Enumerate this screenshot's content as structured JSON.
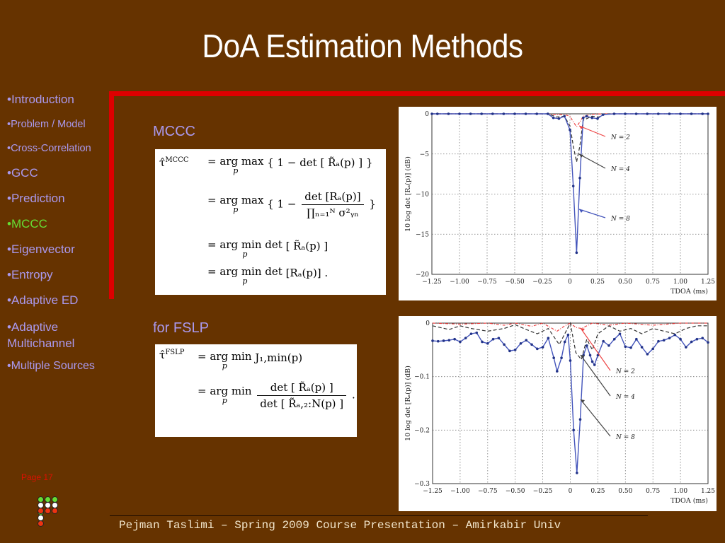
{
  "slide": {
    "title": "DoA Estimation Methods",
    "page_label": "Page 17",
    "footer": "Pejman Taslimi – Spring 2009 Course Presentation – Amirkabir Univ",
    "colors": {
      "background": "#663300",
      "accent_frame": "#dd0000",
      "nav_text": "#aa99ee",
      "nav_active": "#66dd33",
      "page_label": "#dd1100"
    }
  },
  "sidebar": {
    "items": [
      {
        "label": "•Introduction",
        "active": false
      },
      {
        "label": "•Problem / Model",
        "active": false
      },
      {
        "label": "•Cross-Correlation",
        "active": false
      },
      {
        "label": "•GCC",
        "active": false
      },
      {
        "label": "•Prediction",
        "active": false
      },
      {
        "label": "•MCCC",
        "active": true
      },
      {
        "label": "•Eigenvector",
        "active": false
      },
      {
        "label": "•Entropy",
        "active": false
      },
      {
        "label": "•Adaptive ED",
        "active": false
      },
      {
        "label": "•Adaptive Multichannel",
        "active": false
      },
      {
        "label": "•Multiple Sources",
        "active": false
      }
    ]
  },
  "nav_dots": {
    "rows": [
      [
        "#66dd33",
        "#66dd33",
        "#66dd33",
        "#66dd33"
      ],
      [
        "#ffffff",
        "#ffffff",
        "#ffffff",
        "#ffffff"
      ],
      [
        "#ee3311",
        "#ee3311",
        "#ee3311",
        "#ee3311"
      ]
    ]
  },
  "main": {
    "mccc_label": "MCCC",
    "fslp_label": "for FSLP",
    "mccc_formula": {
      "lhs": "τ̂",
      "lhs_sup": "MCCC",
      "lines": [
        {
          "op": "= arg max",
          "under": "p",
          "body": "{ 1 − det [ R̃ₐ(p) ] }"
        },
        {
          "op": "= arg max",
          "under": "p",
          "pre": "{ 1 −",
          "num": "det [Rₐ(p)]",
          "den": "∏ₙ₌₁ᴺ σ²ᵧₙ",
          "post": "}"
        },
        {
          "op": "= arg min det",
          "under": "p",
          "body": "[ R̃ₐ(p) ]"
        },
        {
          "op": "= arg min det",
          "under": "p",
          "body": "[Rₐ(p)] ."
        }
      ]
    },
    "fslp_formula": {
      "lhs": "τ̂",
      "lhs_sup": "FSLP",
      "lines": [
        {
          "op": "= arg min",
          "under": "p",
          "body": "J₁,min(p)"
        },
        {
          "op": "= arg min",
          "under": "p",
          "num": "det [ R̃ₐ(p) ]",
          "den": "det [ R̃ₐ,₂:N(p) ]",
          "post": "."
        }
      ]
    }
  },
  "chart_data": [
    {
      "type": "line",
      "title": "",
      "xlabel": "TDOA (ms)",
      "ylabel": "10 log det [Rₐ(p)]  (dB)",
      "xlim": [
        -1.25,
        1.25
      ],
      "ylim": [
        -20,
        0
      ],
      "xticks": [
        -1.25,
        -1.0,
        -0.75,
        -0.5,
        -0.25,
        0,
        0.25,
        0.5,
        0.75,
        1.0,
        1.25
      ],
      "xtick_labels": [
        "−1.25",
        "−1.00",
        "−0.75",
        "−0.50",
        "−0.25",
        "0",
        "0.25",
        "0.50",
        "0.75",
        "1.00",
        "1.25"
      ],
      "yticks": [
        0,
        -5,
        -10,
        -15,
        -20
      ],
      "ytick_labels": [
        "0",
        "−5",
        "−10",
        "−15",
        "−20"
      ],
      "grid": true,
      "annotations": [
        "N = 2",
        "N = 4",
        "N = 8"
      ],
      "series": [
        {
          "name": "N = 2",
          "color": "#ee4444",
          "style": "dash-dot",
          "x": [
            -1.25,
            -0.25,
            -0.15,
            -0.05,
            0,
            0.03,
            0.06,
            0.09,
            0.12,
            0.2,
            0.3,
            1.25
          ],
          "y": [
            0,
            0,
            -0.05,
            -0.1,
            -0.3,
            -1.0,
            -1.6,
            -1.0,
            -0.3,
            -0.05,
            0,
            0
          ]
        },
        {
          "name": "N = 4",
          "color": "#333333",
          "style": "dashed",
          "x": [
            -1.25,
            -0.2,
            -0.12,
            -0.05,
            0,
            0.03,
            0.06,
            0.09,
            0.12,
            0.2,
            0.26,
            0.32,
            1.25
          ],
          "y": [
            0,
            0,
            -0.4,
            -0.3,
            -1.5,
            -4.0,
            -6.0,
            -4.0,
            -0.8,
            -0.3,
            -0.4,
            0,
            0
          ]
        },
        {
          "name": "N = 8",
          "color": "#4455bb",
          "style": "solid-marker",
          "x": [
            -1.25,
            -1.2,
            -1.1,
            -1.0,
            -0.9,
            -0.8,
            -0.7,
            -0.6,
            -0.5,
            -0.4,
            -0.3,
            -0.2,
            -0.15,
            -0.1,
            -0.05,
            0,
            0.03,
            0.06,
            0.09,
            0.12,
            0.15,
            0.2,
            0.25,
            0.3,
            0.4,
            0.5,
            0.6,
            0.7,
            0.8,
            0.9,
            1.0,
            1.1,
            1.2,
            1.25
          ],
          "y": [
            0,
            0,
            0,
            0,
            0,
            0,
            0,
            0,
            0,
            0,
            0,
            0,
            -0.5,
            -0.6,
            -0.3,
            -2.0,
            -9.0,
            -17.3,
            -8.0,
            -0.5,
            -0.3,
            -0.5,
            -0.6,
            -0.1,
            0,
            0,
            0,
            0,
            0,
            0,
            0,
            0,
            0,
            0
          ]
        }
      ]
    },
    {
      "type": "line",
      "title": "",
      "xlabel": "TDOA (ms)",
      "ylabel": "10 log det [Rₐ(p)]  (dB)",
      "xlim": [
        -1.25,
        1.25
      ],
      "ylim": [
        -0.3,
        0
      ],
      "xticks": [
        -1.25,
        -1.0,
        -0.75,
        -0.5,
        -0.25,
        0,
        0.25,
        0.5,
        0.75,
        1.0,
        1.25
      ],
      "xtick_labels": [
        "−1.25",
        "−1.00",
        "−0.75",
        "−0.50",
        "−0.25",
        "0",
        "0.25",
        "0.50",
        "0.75",
        "1.00",
        "1.25"
      ],
      "yticks": [
        0,
        -0.1,
        -0.2,
        -0.3
      ],
      "ytick_labels": [
        "0",
        "−0.1",
        "−0.2",
        "−0.3"
      ],
      "grid": true,
      "annotations": [
        "N = 2",
        "N = 4",
        "N = 8"
      ],
      "series": [
        {
          "name": "N = 2",
          "color": "#ee4444",
          "style": "dash-dot",
          "x": [
            -1.25,
            -1.0,
            -0.75,
            -0.6,
            -0.5,
            -0.35,
            -0.25,
            -0.12,
            -0.05,
            0,
            0.05,
            0.1,
            0.2,
            0.35,
            0.5,
            0.75,
            1.0,
            1.25
          ],
          "y": [
            0,
            -0.002,
            0,
            -0.004,
            0,
            -0.006,
            0,
            -0.015,
            -0.005,
            0,
            -0.008,
            -0.01,
            0,
            -0.004,
            0,
            -0.004,
            0,
            0
          ]
        },
        {
          "name": "N = 4",
          "color": "#333333",
          "style": "dashed",
          "x": [
            -1.25,
            -1.1,
            -1.0,
            -0.9,
            -0.75,
            -0.6,
            -0.5,
            -0.4,
            -0.3,
            -0.2,
            -0.1,
            -0.05,
            0,
            0.05,
            0.1,
            0.15,
            0.2,
            0.25,
            0.35,
            0.45,
            0.55,
            0.65,
            0.75,
            0.85,
            0.95,
            1.05,
            1.15,
            1.25
          ],
          "y": [
            -0.005,
            -0.012,
            -0.005,
            -0.01,
            -0.015,
            -0.01,
            -0.003,
            -0.012,
            -0.02,
            -0.01,
            -0.04,
            -0.02,
            0,
            -0.055,
            -0.068,
            -0.03,
            -0.05,
            -0.02,
            -0.005,
            -0.015,
            -0.01,
            -0.02,
            -0.01,
            -0.015,
            -0.02,
            -0.01,
            -0.005,
            -0.005
          ]
        },
        {
          "name": "N = 8",
          "color": "#4455bb",
          "style": "solid-marker",
          "x": [
            -1.25,
            -1.2,
            -1.15,
            -1.1,
            -1.05,
            -1.0,
            -0.95,
            -0.9,
            -0.85,
            -0.8,
            -0.75,
            -0.7,
            -0.65,
            -0.6,
            -0.55,
            -0.5,
            -0.45,
            -0.4,
            -0.35,
            -0.3,
            -0.25,
            -0.2,
            -0.15,
            -0.12,
            -0.08,
            -0.05,
            -0.02,
            0,
            0.03,
            0.06,
            0.09,
            0.12,
            0.15,
            0.18,
            0.2,
            0.22,
            0.25,
            0.3,
            0.35,
            0.4,
            0.45,
            0.5,
            0.55,
            0.6,
            0.65,
            0.7,
            0.75,
            0.8,
            0.85,
            0.9,
            0.95,
            1.0,
            1.05,
            1.1,
            1.15,
            1.2,
            1.25
          ],
          "y": [
            -0.033,
            -0.034,
            -0.033,
            -0.032,
            -0.03,
            -0.035,
            -0.028,
            -0.02,
            -0.018,
            -0.035,
            -0.038,
            -0.03,
            -0.028,
            -0.04,
            -0.052,
            -0.05,
            -0.038,
            -0.032,
            -0.04,
            -0.048,
            -0.045,
            -0.028,
            -0.065,
            -0.09,
            -0.065,
            -0.035,
            -0.022,
            -0.07,
            -0.2,
            -0.28,
            -0.18,
            -0.06,
            -0.042,
            -0.06,
            -0.072,
            -0.078,
            -0.06,
            -0.034,
            -0.042,
            -0.03,
            -0.02,
            -0.044,
            -0.046,
            -0.03,
            -0.045,
            -0.058,
            -0.048,
            -0.034,
            -0.032,
            -0.028,
            -0.022,
            -0.03,
            -0.045,
            -0.035,
            -0.03,
            -0.028,
            -0.036
          ]
        }
      ]
    }
  ]
}
